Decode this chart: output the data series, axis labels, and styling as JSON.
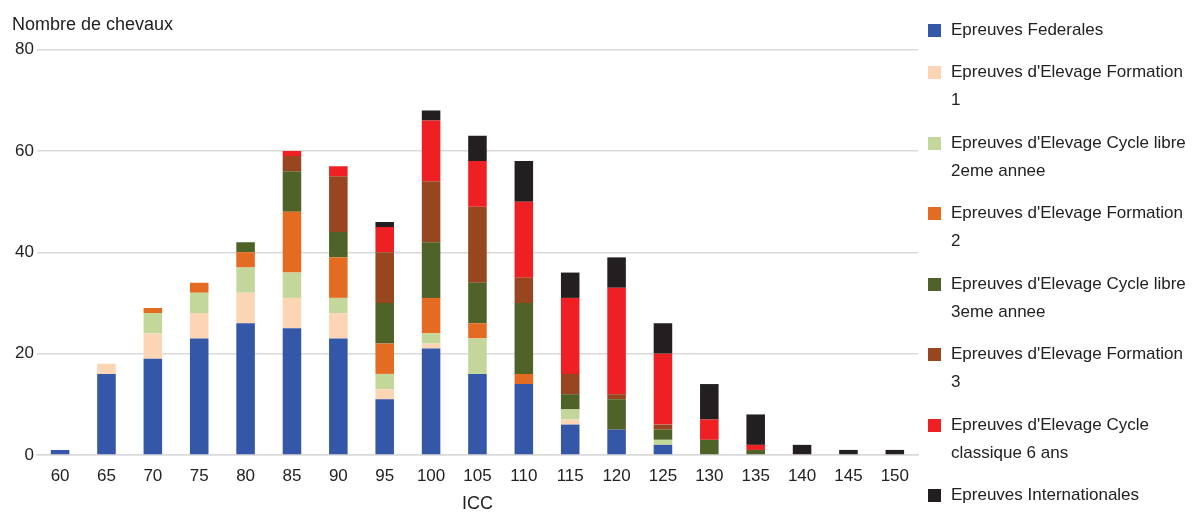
{
  "chart_data": {
    "type": "bar",
    "stacked": true,
    "xlabel": "ICC",
    "ylabel": "Nombre de chevaux",
    "categories": [
      "60",
      "65",
      "70",
      "75",
      "80",
      "85",
      "90",
      "95",
      "100",
      "105",
      "110",
      "115",
      "120",
      "125",
      "130",
      "135",
      "140",
      "145",
      "150"
    ],
    "ylim": [
      0,
      80
    ],
    "yticks": [
      0,
      20,
      40,
      60,
      80
    ],
    "grid": "y",
    "legend": "right",
    "series": [
      {
        "name": "Epreuves Federales",
        "color": "#3557a7",
        "values": [
          1,
          16,
          19,
          23,
          26,
          25,
          23,
          11,
          21,
          16,
          14,
          6,
          5,
          2,
          0,
          0,
          0,
          0,
          0
        ]
      },
      {
        "name": "Epreuves d'Elevage Formation 1",
        "color": "#fcd5b5",
        "values": [
          0,
          2,
          5,
          5,
          6,
          6,
          5,
          2,
          1,
          0,
          0,
          1,
          0,
          0,
          0,
          0,
          0,
          0,
          0
        ]
      },
      {
        "name": "Epreuves d'Elevage Cycle libre 2eme annee",
        "color": "#c4d79b",
        "values": [
          0,
          0,
          4,
          4,
          5,
          5,
          3,
          3,
          2,
          7,
          0,
          2,
          0,
          1,
          0,
          0,
          0,
          0,
          0
        ]
      },
      {
        "name": "Epreuves d'Elevage Formation 2",
        "color": "#e46c22",
        "values": [
          0,
          0,
          1,
          2,
          3,
          12,
          8,
          6,
          7,
          3,
          2,
          0,
          0,
          0,
          0,
          0,
          0,
          0,
          0
        ]
      },
      {
        "name": "Epreuves d'Elevage Cycle libre 3eme annee",
        "color": "#4f6228",
        "values": [
          0,
          0,
          0,
          0,
          2,
          8,
          5,
          8,
          11,
          8,
          14,
          3,
          6,
          2,
          3,
          1,
          0,
          0,
          0
        ]
      },
      {
        "name": "Epreuves d'Elevage Formation 3",
        "color": "#974620",
        "values": [
          0,
          0,
          0,
          0,
          0,
          3,
          11,
          10,
          12,
          15,
          5,
          4,
          1,
          1,
          0,
          0,
          0,
          0,
          0
        ]
      },
      {
        "name": "Epreuves d'Elevage Cycle classique 6 ans",
        "color": "#ee2024",
        "values": [
          0,
          0,
          0,
          0,
          0,
          1,
          2,
          5,
          12,
          9,
          15,
          15,
          21,
          14,
          4,
          1,
          0,
          0,
          0
        ]
      },
      {
        "name": "Epreuves Internationales",
        "color": "#231f20",
        "values": [
          0,
          0,
          0,
          0,
          0,
          0,
          0,
          1,
          2,
          5,
          8,
          5,
          6,
          6,
          7,
          6,
          2,
          1,
          1
        ]
      }
    ]
  }
}
